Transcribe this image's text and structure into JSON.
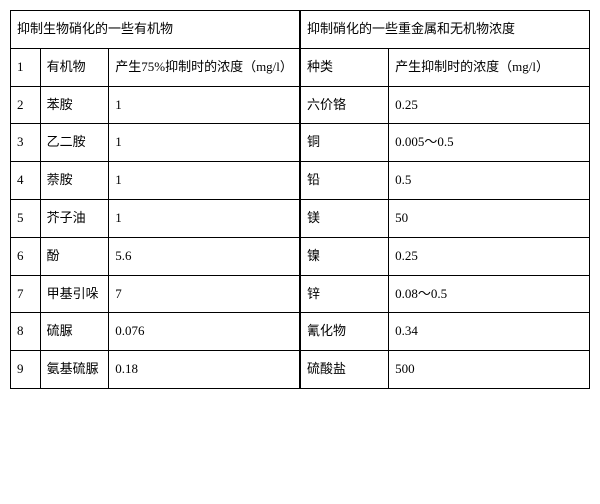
{
  "leftTable": {
    "title": "抑制生物硝化的一些有机物",
    "header": {
      "num": "1",
      "name": "有机物",
      "val": "产生75%抑制时的浓度（mg/l）"
    },
    "rows": [
      {
        "num": "2",
        "name": "苯胺",
        "val": "1"
      },
      {
        "num": "3",
        "name": "乙二胺",
        "val": "1"
      },
      {
        "num": "4",
        "name": "萘胺",
        "val": "1"
      },
      {
        "num": "5",
        "name": "芥子油",
        "val": "1"
      },
      {
        "num": "6",
        "name": "酚",
        "val": "5.6"
      },
      {
        "num": "7",
        "name": "甲基引哚",
        "val": "7"
      },
      {
        "num": "8",
        "name": "硫脲",
        "val": "0.076"
      },
      {
        "num": "9",
        "name": "氨基硫脲",
        "val": "0.18"
      }
    ]
  },
  "rightTable": {
    "title": "抑制硝化的一些重金属和无机物浓度",
    "header": {
      "name": "种类",
      "val": "产生抑制时的浓度（mg/l）"
    },
    "rows": [
      {
        "name": "六价铬",
        "val": "0.25"
      },
      {
        "name": "铜",
        "val": "0.005～0.5"
      },
      {
        "name": "铅",
        "val": "0.5"
      },
      {
        "name": "镁",
        "val": "50"
      },
      {
        "name": "镍",
        "val": "0.25"
      },
      {
        "name": "锌",
        "val": "0.08～0.5"
      },
      {
        "name": "氰化物",
        "val": "0.34"
      },
      {
        "name": "硫酸盐",
        "val": "500"
      }
    ]
  },
  "styling": {
    "border_color": "#000000",
    "background_color": "#ffffff",
    "text_color": "#000000",
    "font_size": 13,
    "font_family": "SimSun"
  }
}
